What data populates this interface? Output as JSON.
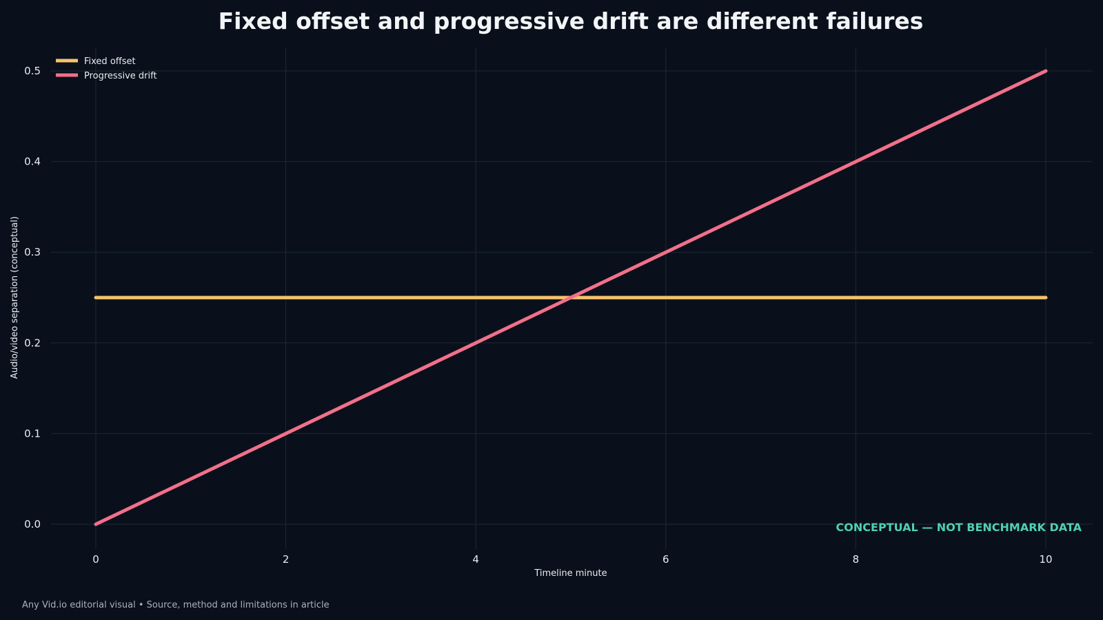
{
  "chart_data": {
    "type": "line",
    "title": "Fixed offset and progressive drift are different failures",
    "xlabel": "Timeline minute",
    "ylabel": "Audio/video separation (conceptual)",
    "xlim": [
      -0.5,
      10.5
    ],
    "ylim": [
      -0.025,
      0.525
    ],
    "x_ticks": [
      0,
      2,
      4,
      6,
      8,
      10
    ],
    "x_tick_labels": [
      "0",
      "2",
      "4",
      "6",
      "8",
      "10"
    ],
    "y_ticks": [
      0.0,
      0.1,
      0.2,
      0.3,
      0.4,
      0.5
    ],
    "y_tick_labels": [
      "0.0",
      "0.1",
      "0.2",
      "0.3",
      "0.4",
      "0.5"
    ],
    "grid": true,
    "legend_position": "top-left",
    "series": [
      {
        "name": "Fixed offset",
        "color": "#f6c26b",
        "x": [
          0,
          10
        ],
        "y": [
          0.25,
          0.25
        ]
      },
      {
        "name": "Progressive drift",
        "color": "#f2708a",
        "x": [
          0,
          10
        ],
        "y": [
          0.0,
          0.5
        ]
      }
    ],
    "annotation": "CONCEPTUAL — NOT BENCHMARK DATA",
    "annotation_color": "#4fd1b0"
  },
  "footer": {
    "text": "Any Vid.io editorial visual • Source, method and limitations in article"
  },
  "colors": {
    "background": "#0a101b",
    "grid": "#1a2a33",
    "text": "#e8edf2"
  }
}
